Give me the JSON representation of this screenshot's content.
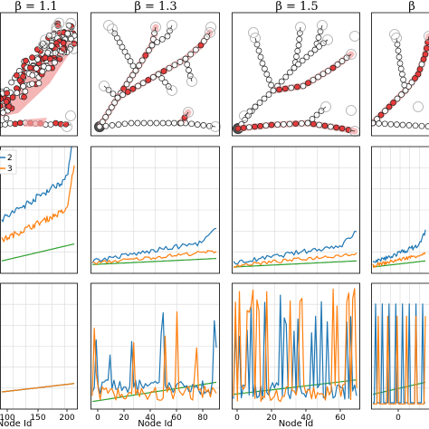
{
  "chart_data": [
    {
      "type": "line",
      "panel": "beta-1.1",
      "title": "β = 1.1",
      "xlabel": "Node Id",
      "xticks": [
        100,
        150,
        200
      ],
      "legend_entries": [
        "2",
        "3"
      ],
      "series_colors": [
        "#1f77b4",
        "#ff7f0e",
        "#2ca02c"
      ]
    },
    {
      "type": "line",
      "panel": "beta-1.3",
      "title": "β = 1.3",
      "xlabel": "Node Id",
      "xticks": [
        0,
        20,
        40,
        60,
        80
      ],
      "series_colors": [
        "#1f77b4",
        "#ff7f0e",
        "#2ca02c"
      ]
    },
    {
      "type": "line",
      "panel": "beta-1.5",
      "title": "β = 1.5",
      "xlabel": "Node Id",
      "xticks": [
        0,
        20,
        40,
        60
      ],
      "series_colors": [
        "#1f77b4",
        "#ff7f0e",
        "#2ca02c"
      ]
    },
    {
      "type": "line",
      "panel": "beta-partial",
      "title": "β",
      "xticks": [
        0
      ],
      "series_colors": [
        "#1f77b4",
        "#ff7f0e",
        "#2ca02c"
      ]
    }
  ]
}
